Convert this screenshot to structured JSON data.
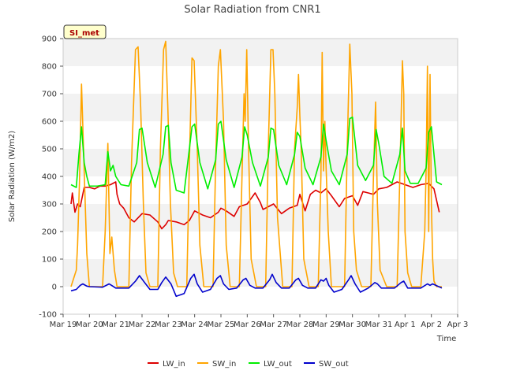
{
  "chart_data": {
    "type": "line",
    "title": "Solar Radiation from CNR1",
    "badge": "SI_met",
    "xlabel": "Time",
    "ylabel": "Solar Radiation (W/m2)",
    "ylim": [
      -100,
      900
    ],
    "yticks": [
      -100,
      0,
      100,
      200,
      300,
      400,
      500,
      600,
      700,
      800,
      900
    ],
    "xlim": [
      0,
      15
    ],
    "x_unit": "days since Mar 19",
    "xticks": [
      {
        "x": 0,
        "label": "Mar 19"
      },
      {
        "x": 1,
        "label": "Mar 20"
      },
      {
        "x": 2,
        "label": "Mar 21"
      },
      {
        "x": 3,
        "label": "Mar 22"
      },
      {
        "x": 4,
        "label": "Mar 23"
      },
      {
        "x": 5,
        "label": "Mar 24"
      },
      {
        "x": 6,
        "label": "Mar 25"
      },
      {
        "x": 7,
        "label": "Mar 26"
      },
      {
        "x": 8,
        "label": "Mar 27"
      },
      {
        "x": 9,
        "label": "Mar 28"
      },
      {
        "x": 10,
        "label": "Mar 29"
      },
      {
        "x": 11,
        "label": "Mar 30"
      },
      {
        "x": 12,
        "label": "Mar 31"
      },
      {
        "x": 13,
        "label": "Apr 1"
      },
      {
        "x": 14,
        "label": "Apr 2"
      },
      {
        "x": 15,
        "label": "Apr 3"
      }
    ],
    "grid": "horizontal bands",
    "legend": "bottom",
    "series": [
      {
        "name": "LW_in",
        "color": "#dd0000",
        "x": [
          0.3,
          0.35,
          0.45,
          0.55,
          0.65,
          0.8,
          1.0,
          1.2,
          1.4,
          1.6,
          1.8,
          2.0,
          2.05,
          2.15,
          2.3,
          2.5,
          2.7,
          3.0,
          3.3,
          3.6,
          3.75,
          3.9,
          4.0,
          4.3,
          4.6,
          4.8,
          5.0,
          5.3,
          5.6,
          5.9,
          6.0,
          6.2,
          6.5,
          6.7,
          7.0,
          7.3,
          7.5,
          7.6,
          7.8,
          8.0,
          8.3,
          8.6,
          8.9,
          9.0,
          9.2,
          9.4,
          9.6,
          9.8,
          10.0,
          10.2,
          10.5,
          10.7,
          11.0,
          11.2,
          11.4,
          11.6,
          11.8,
          12.0,
          12.3,
          12.5,
          12.7,
          13.0,
          13.3,
          13.6,
          13.9,
          14.1,
          14.3
        ],
        "y": [
          300,
          340,
          270,
          300,
          290,
          360,
          360,
          355,
          365,
          365,
          370,
          380,
          335,
          300,
          285,
          250,
          235,
          265,
          260,
          235,
          210,
          225,
          240,
          235,
          225,
          240,
          275,
          260,
          250,
          270,
          285,
          275,
          255,
          290,
          300,
          340,
          305,
          280,
          290,
          300,
          265,
          285,
          295,
          335,
          275,
          335,
          350,
          340,
          355,
          330,
          290,
          320,
          330,
          295,
          345,
          340,
          335,
          355,
          360,
          370,
          380,
          370,
          360,
          370,
          375,
          355,
          270
        ]
      },
      {
        "name": "SW_in",
        "color": "#ffa500",
        "x": [
          0.3,
          0.5,
          0.55,
          0.62,
          0.7,
          0.8,
          0.9,
          1.0,
          1.5,
          1.6,
          1.7,
          1.78,
          1.85,
          1.95,
          2.05,
          2.5,
          2.6,
          2.75,
          2.85,
          2.95,
          3.05,
          3.15,
          3.3,
          3.6,
          3.7,
          3.82,
          3.9,
          3.98,
          4.08,
          4.2,
          4.35,
          4.7,
          4.8,
          4.9,
          4.98,
          5.1,
          5.2,
          5.35,
          5.7,
          5.8,
          5.9,
          5.98,
          6.1,
          6.2,
          6.35,
          6.7,
          6.8,
          6.88,
          6.92,
          6.98,
          7.05,
          7.15,
          7.35,
          7.7,
          7.8,
          7.9,
          7.98,
          8.05,
          8.15,
          8.35,
          8.7,
          8.8,
          8.9,
          8.95,
          9.0,
          9.05,
          9.15,
          9.35,
          9.7,
          9.8,
          9.85,
          9.9,
          9.95,
          10.0,
          10.08,
          10.2,
          10.7,
          10.8,
          10.9,
          10.98,
          11.05,
          11.15,
          11.35,
          11.7,
          11.8,
          11.88,
          11.95,
          12.05,
          12.3,
          12.7,
          12.8,
          12.9,
          12.95,
          13.0,
          13.1,
          13.25,
          13.6,
          13.75,
          13.8,
          13.85,
          13.9,
          13.95,
          14.0,
          14.05,
          14.1,
          14.2,
          14.4
        ],
        "y": [
          0,
          60,
          150,
          380,
          735,
          420,
          120,
          0,
          0,
          200,
          520,
          120,
          180,
          60,
          0,
          0,
          450,
          860,
          870,
          650,
          300,
          50,
          0,
          0,
          500,
          860,
          890,
          650,
          300,
          50,
          0,
          0,
          450,
          830,
          820,
          500,
          150,
          0,
          0,
          450,
          800,
          860,
          600,
          150,
          0,
          0,
          400,
          700,
          600,
          860,
          500,
          100,
          0,
          0,
          500,
          860,
          860,
          700,
          250,
          0,
          0,
          500,
          650,
          770,
          620,
          500,
          100,
          0,
          0,
          400,
          850,
          420,
          600,
          430,
          200,
          0,
          0,
          500,
          880,
          700,
          200,
          60,
          0,
          0,
          400,
          670,
          300,
          60,
          0,
          0,
          400,
          820,
          700,
          200,
          50,
          0,
          0,
          200,
          420,
          800,
          200,
          770,
          300,
          100,
          20,
          0,
          0
        ]
      },
      {
        "name": "LW_out",
        "color": "#00ee00",
        "x": [
          0.3,
          0.5,
          0.6,
          0.7,
          0.8,
          0.9,
          1.0,
          1.3,
          1.6,
          1.7,
          1.8,
          1.9,
          2.0,
          2.2,
          2.5,
          2.8,
          2.9,
          3.0,
          3.2,
          3.5,
          3.8,
          3.9,
          4.0,
          4.1,
          4.3,
          4.6,
          4.8,
          4.9,
          5.0,
          5.2,
          5.5,
          5.8,
          5.9,
          6.0,
          6.2,
          6.5,
          6.8,
          6.9,
          7.0,
          7.2,
          7.5,
          7.8,
          7.9,
          8.0,
          8.2,
          8.5,
          8.8,
          8.9,
          9.0,
          9.2,
          9.5,
          9.8,
          9.9,
          10.0,
          10.2,
          10.5,
          10.8,
          10.9,
          11.0,
          11.2,
          11.5,
          11.8,
          11.9,
          12.0,
          12.2,
          12.5,
          12.8,
          12.9,
          13.0,
          13.2,
          13.5,
          13.8,
          13.9,
          14.0,
          14.2,
          14.4
        ],
        "y": [
          370,
          360,
          480,
          580,
          450,
          400,
          365,
          365,
          370,
          490,
          420,
          440,
          400,
          370,
          365,
          450,
          570,
          575,
          450,
          360,
          480,
          580,
          585,
          450,
          350,
          340,
          500,
          580,
          590,
          450,
          355,
          460,
          590,
          600,
          460,
          360,
          470,
          580,
          550,
          450,
          365,
          470,
          575,
          570,
          440,
          370,
          480,
          560,
          545,
          430,
          370,
          470,
          590,
          530,
          420,
          370,
          480,
          610,
          615,
          440,
          385,
          440,
          570,
          520,
          400,
          375,
          480,
          575,
          420,
          375,
          375,
          430,
          560,
          580,
          380,
          370
        ]
      },
      {
        "name": "SW_out",
        "color": "#0000cc",
        "x": [
          0.3,
          0.5,
          0.65,
          0.75,
          0.9,
          1.0,
          1.5,
          1.75,
          1.85,
          2.0,
          2.5,
          2.75,
          2.9,
          3.1,
          3.3,
          3.6,
          3.75,
          3.9,
          4.1,
          4.3,
          4.6,
          4.85,
          4.98,
          5.1,
          5.3,
          5.6,
          5.85,
          5.98,
          6.1,
          6.3,
          6.6,
          6.85,
          6.95,
          7.1,
          7.3,
          7.6,
          7.85,
          7.95,
          8.1,
          8.3,
          8.6,
          8.85,
          8.95,
          9.1,
          9.3,
          9.6,
          9.8,
          9.9,
          10.0,
          10.1,
          10.3,
          10.6,
          10.85,
          10.95,
          11.1,
          11.3,
          11.6,
          11.85,
          11.95,
          12.1,
          12.3,
          12.6,
          12.85,
          12.95,
          13.1,
          13.3,
          13.6,
          13.85,
          13.95,
          14.05,
          14.4
        ],
        "y": [
          -15,
          -10,
          5,
          10,
          2,
          0,
          -2,
          10,
          4,
          -5,
          -5,
          20,
          40,
          15,
          -10,
          -10,
          15,
          35,
          10,
          -35,
          -25,
          30,
          45,
          10,
          -20,
          -10,
          30,
          40,
          10,
          -10,
          -5,
          25,
          30,
          5,
          -5,
          -5,
          25,
          45,
          15,
          -5,
          -5,
          25,
          30,
          5,
          -5,
          -5,
          25,
          20,
          30,
          5,
          -20,
          -10,
          25,
          40,
          10,
          -20,
          -5,
          15,
          10,
          -5,
          -5,
          -5,
          15,
          20,
          -5,
          -5,
          -5,
          10,
          5,
          10,
          -5
        ]
      }
    ]
  }
}
